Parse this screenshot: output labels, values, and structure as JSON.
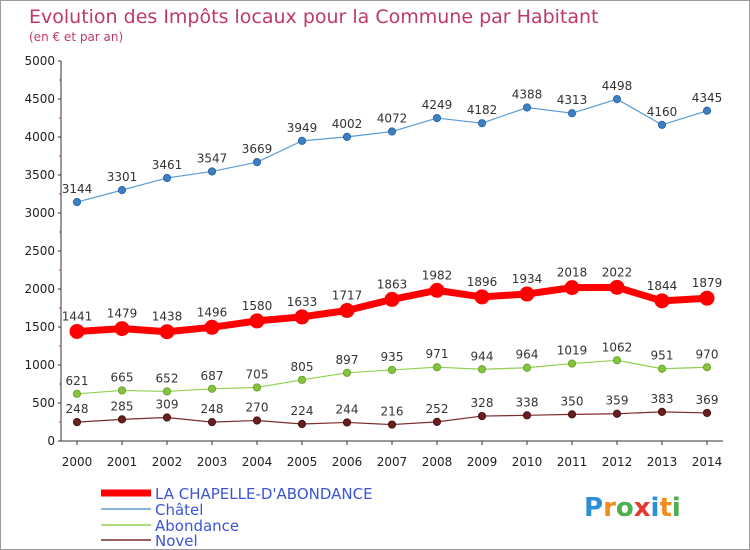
{
  "chart_data": {
    "type": "line",
    "title": "Evolution des Impôts locaux pour la Commune par Habitant",
    "subtitle": "(en € et par an)",
    "x": [
      "2000",
      "2001",
      "2002",
      "2003",
      "2004",
      "2005",
      "2006",
      "2007",
      "2008",
      "2009",
      "2010",
      "2011",
      "2012",
      "2013",
      "2014"
    ],
    "ylim": [
      0,
      5000
    ],
    "yticks": [
      0,
      500,
      1000,
      1500,
      2000,
      2500,
      3000,
      3500,
      4000,
      4500,
      5000
    ],
    "grid": false,
    "legend_position": "bottom-left",
    "series": [
      {
        "name": "LA CHAPELLE-D'ABONDANCE",
        "color": "#ff0000",
        "values": [
          1441,
          1479,
          1438,
          1496,
          1580,
          1633,
          1717,
          1863,
          1982,
          1896,
          1934,
          2018,
          2022,
          1844,
          1879
        ]
      },
      {
        "name": "Châtel",
        "color": "#5b9bd5",
        "values": [
          3144,
          3301,
          3461,
          3547,
          3669,
          3949,
          4002,
          4072,
          4249,
          4182,
          4388,
          4313,
          4498,
          4160,
          4345
        ]
      },
      {
        "name": "Abondance",
        "color": "#92d050",
        "values": [
          621,
          665,
          652,
          687,
          705,
          805,
          897,
          935,
          971,
          944,
          964,
          1019,
          1062,
          951,
          970
        ]
      },
      {
        "name": "Novel",
        "color": "#7b2c2c",
        "values": [
          248,
          285,
          309,
          248,
          270,
          224,
          244,
          216,
          252,
          328,
          338,
          350,
          359,
          383,
          369
        ]
      }
    ]
  },
  "brand": {
    "text": "Proxiti",
    "letters": [
      "P",
      "r",
      "o",
      "x",
      "i",
      "t",
      "i"
    ],
    "letter_colors": [
      "#2c8fd6",
      "#f28c1e",
      "#4caf50",
      "#e53935",
      "#2c8fd6",
      "#f28c1e",
      "#4caf50"
    ]
  }
}
